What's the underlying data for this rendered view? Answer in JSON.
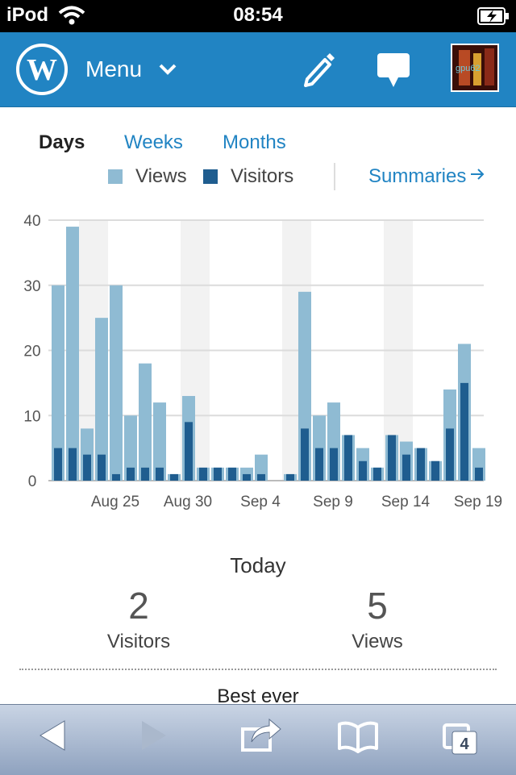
{
  "status_bar": {
    "carrier": "iPod",
    "time": "08:54"
  },
  "masthead": {
    "menu_label": "Menu",
    "avatar_text": "gpu62",
    "colors": {
      "brand": "#2184c3"
    }
  },
  "tabs": [
    "Days",
    "Weeks",
    "Months"
  ],
  "active_tab": "Days",
  "legend": {
    "views_label": "Views",
    "visitors_label": "Visitors",
    "summaries_label": "Summaries"
  },
  "today": {
    "title": "Today",
    "visitors_value": "2",
    "visitors_label": "Visitors",
    "views_value": "5",
    "views_label": "Views"
  },
  "best_ever_label": "Best ever",
  "toolbar": {
    "tabs_count": "4"
  },
  "chart_data": {
    "type": "bar",
    "title": "",
    "xlabel": "",
    "ylabel": "",
    "ylim": [
      0,
      40
    ],
    "y_ticks": [
      0,
      10,
      20,
      30,
      40
    ],
    "x_tick_labels": [
      {
        "label": "Aug 25",
        "index": 4
      },
      {
        "label": "Aug 30",
        "index": 9
      },
      {
        "label": "Sep 4",
        "index": 14
      },
      {
        "label": "Sep 9",
        "index": 19
      },
      {
        "label": "Sep 14",
        "index": 24
      },
      {
        "label": "Sep 19",
        "index": 29
      }
    ],
    "weekend_indices": [
      2,
      3,
      9,
      10,
      16,
      17,
      23,
      24
    ],
    "series": [
      {
        "name": "Views",
        "color": "#8fbbd3",
        "values": [
          30,
          39,
          8,
          25,
          30,
          10,
          18,
          12,
          1,
          13,
          2,
          2,
          2,
          2,
          4,
          0,
          1,
          29,
          10,
          12,
          7,
          5,
          2,
          7,
          6,
          5,
          3,
          14,
          21,
          5
        ]
      },
      {
        "name": "Visitors",
        "color": "#1f5d8f",
        "values": [
          5,
          5,
          4,
          4,
          1,
          2,
          2,
          2,
          1,
          9,
          2,
          2,
          2,
          1,
          1,
          0,
          1,
          8,
          5,
          5,
          7,
          3,
          2,
          7,
          4,
          5,
          3,
          8,
          15,
          2
        ]
      }
    ],
    "grid": true,
    "legend_position": "top"
  }
}
